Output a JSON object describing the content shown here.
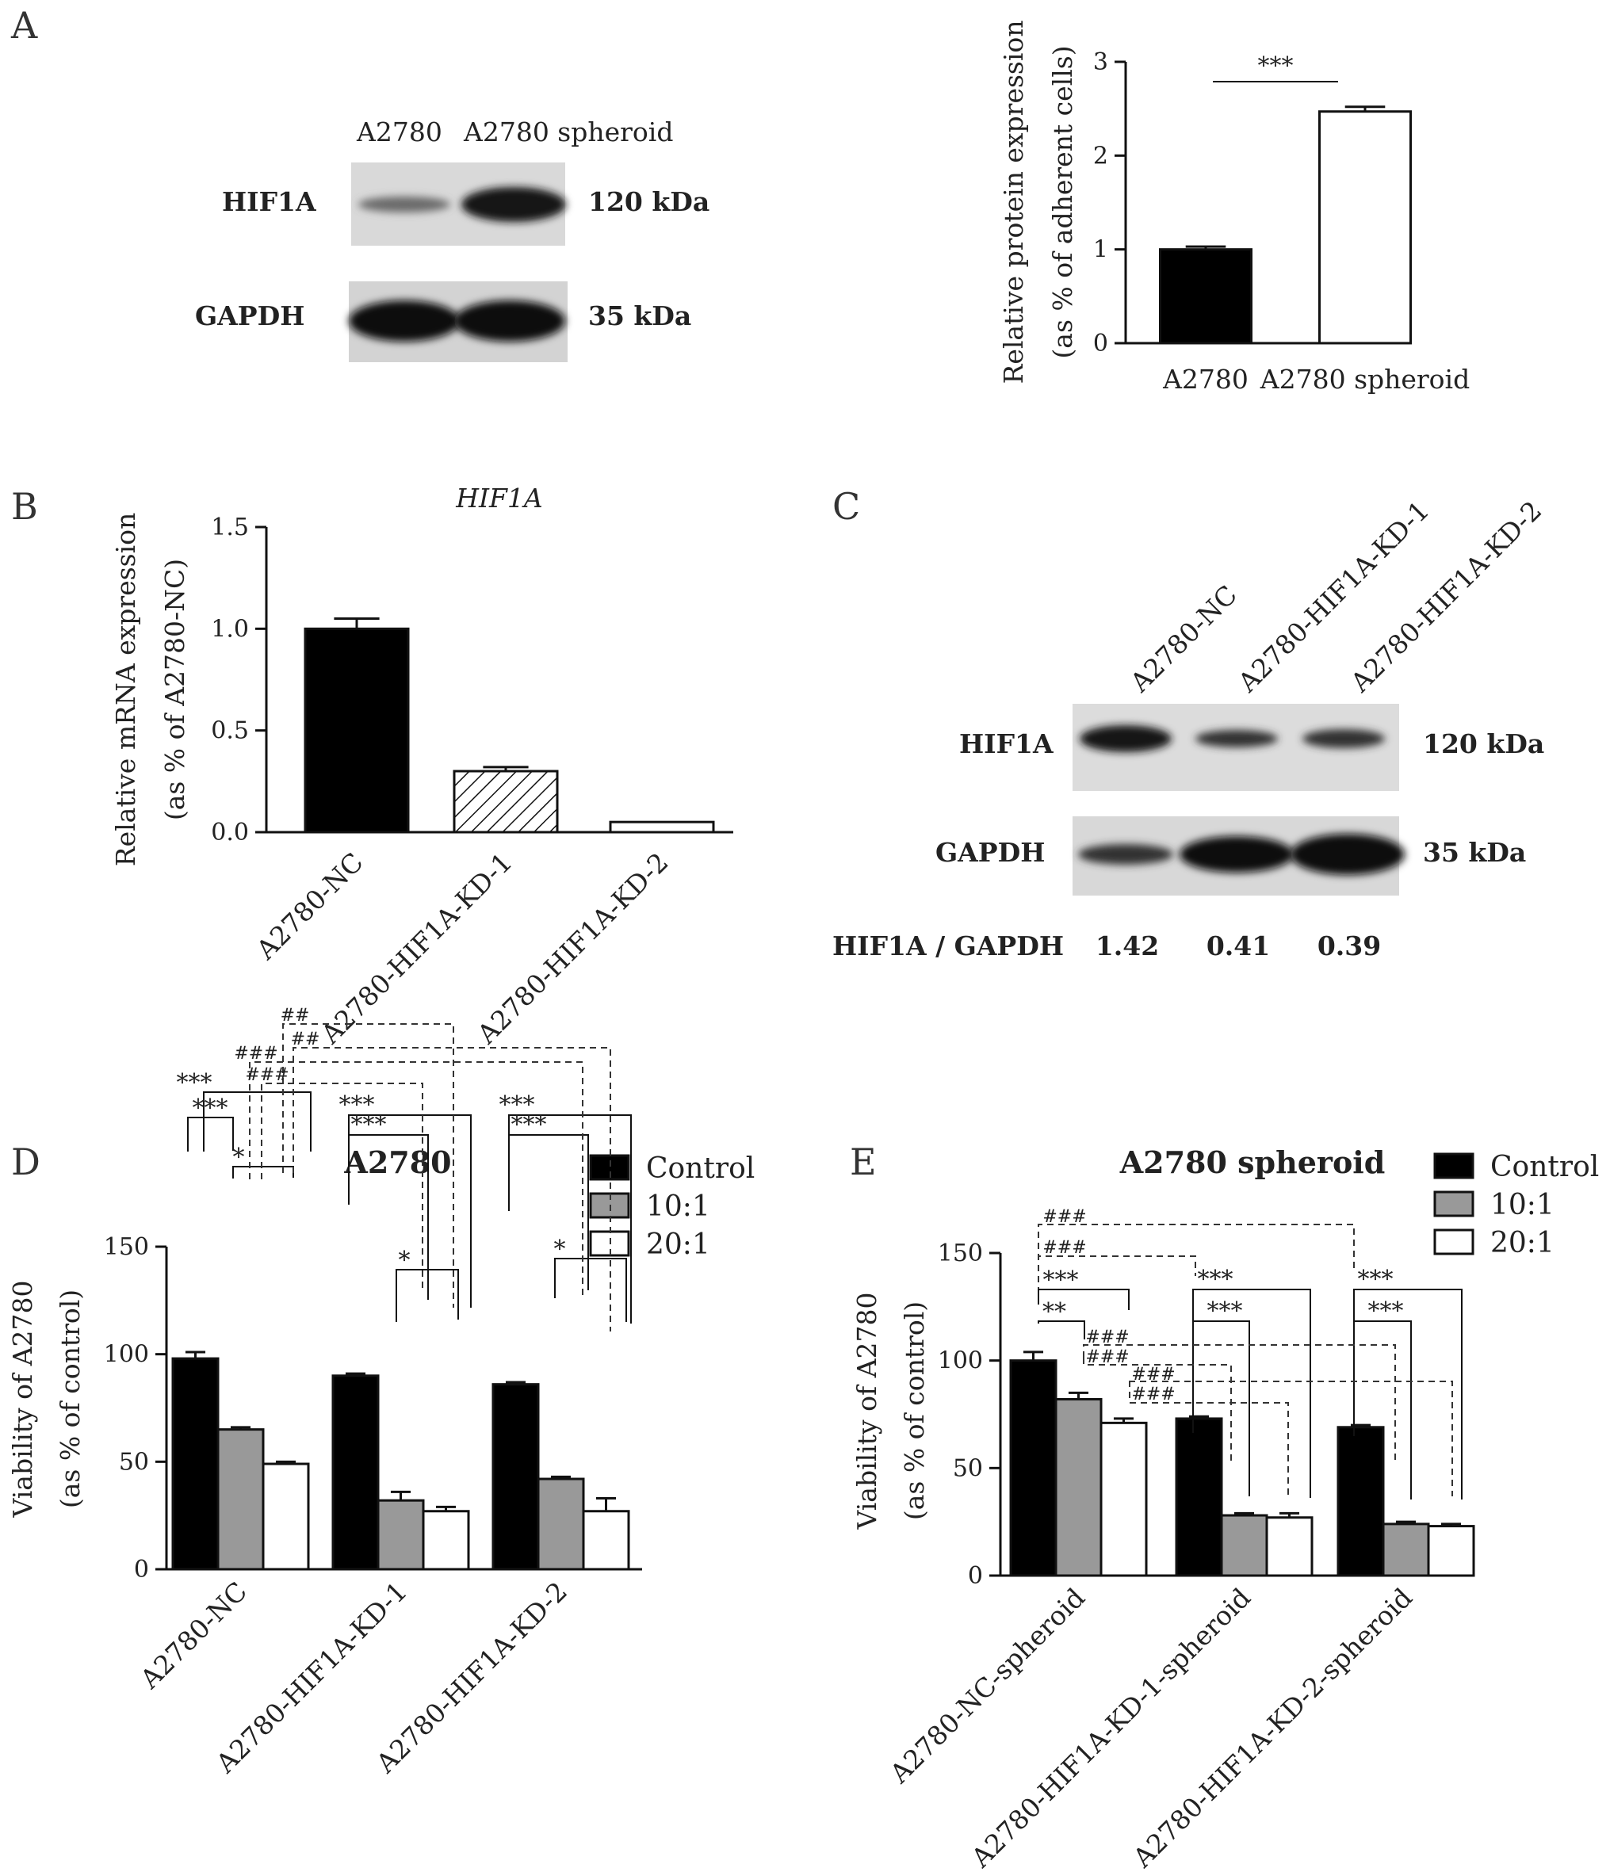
{
  "panels": {
    "A": "A",
    "B": "B",
    "C": "C",
    "D": "D",
    "E": "E"
  },
  "blot_a": {
    "lanes": [
      "A2780",
      "A2780 spheroid"
    ],
    "rows": [
      {
        "protein": "HIF1A",
        "size": "120 kDa"
      },
      {
        "protein": "GAPDH",
        "size": "35 kDa"
      }
    ]
  },
  "blot_c": {
    "lanes": [
      "A2780-NC",
      "A2780-HIF1A-KD-1",
      "A2780-HIF1A-KD-2"
    ],
    "rows": [
      {
        "protein": "HIF1A",
        "size": "120 kDa"
      },
      {
        "protein": "GAPDH",
        "size": "35 kDa"
      }
    ],
    "ratio_label": "HIF1A / GAPDH",
    "ratios": [
      "1.42",
      "0.41",
      "0.39"
    ]
  },
  "colors": {
    "black": "#000000",
    "gray": "#999999",
    "white": "#ffffff"
  },
  "chart_data": [
    {
      "id": "A",
      "type": "bar",
      "title": "",
      "ylabel": [
        "Relative protein expression",
        "(as % of adherent cells)"
      ],
      "categories": [
        "A2780",
        "A2780 spheroid"
      ],
      "values": [
        1.0,
        2.47
      ],
      "errors": [
        0.03,
        0.05
      ],
      "fills": [
        "black",
        "white"
      ],
      "ylim": [
        0,
        3
      ],
      "yticks": [
        "0",
        "1",
        "2",
        "3"
      ],
      "significance": [
        "***"
      ]
    },
    {
      "id": "B",
      "type": "bar",
      "title": "HIF1A",
      "ylabel": [
        "Relative mRNA expression",
        "(as % of A2780-NC)"
      ],
      "categories": [
        "A2780-NC",
        "A2780-HIF1A-KD-1",
        "A2780-HIF1A-KD-2"
      ],
      "values": [
        1.0,
        0.3,
        0.05
      ],
      "errors": [
        0.05,
        0.02,
        0.0
      ],
      "fills": [
        "black",
        "hatched",
        "white"
      ],
      "ylim": [
        0,
        1.5
      ],
      "yticks": [
        "0.0",
        "0.5",
        "1.0",
        "1.5"
      ]
    },
    {
      "id": "D",
      "type": "bar",
      "title": "A2780",
      "ylabel": [
        "Viability of A2780",
        "(as % of control)"
      ],
      "categories": [
        "A2780-NC",
        "A2780-HIF1A-KD-1",
        "A2780-HIF1A-KD-2"
      ],
      "series": [
        {
          "name": "Control",
          "values": [
            98,
            90,
            86
          ],
          "errors": [
            3,
            1,
            1
          ]
        },
        {
          "name": "10:1",
          "values": [
            65,
            32,
            42
          ],
          "errors": [
            1,
            4,
            1
          ]
        },
        {
          "name": "20:1",
          "values": [
            49,
            27,
            27
          ],
          "errors": [
            1,
            2,
            6
          ]
        }
      ],
      "ylim": [
        0,
        150
      ],
      "yticks": [
        "0",
        "50",
        "100",
        "150"
      ],
      "legend": "top-right",
      "significance": [
        "***",
        "***",
        "*",
        "***",
        "***",
        "*",
        "***",
        "***",
        "*",
        "##",
        "##",
        "###",
        "###"
      ]
    },
    {
      "id": "E",
      "type": "bar",
      "title": "A2780 spheroid",
      "ylabel": [
        "Viability of A2780",
        "(as % of control)"
      ],
      "categories": [
        "A2780-NC-spheroid",
        "A2780-HIF1A-KD-1-spheroid",
        "A2780-HIF1A-KD-2-spheroid"
      ],
      "series": [
        {
          "name": "Control",
          "values": [
            100,
            73,
            69
          ],
          "errors": [
            4,
            1,
            1
          ]
        },
        {
          "name": "10:1",
          "values": [
            82,
            28,
            24
          ],
          "errors": [
            3,
            1,
            1
          ]
        },
        {
          "name": "20:1",
          "values": [
            71,
            27,
            23
          ],
          "errors": [
            2,
            2,
            1
          ]
        }
      ],
      "ylim": [
        0,
        150
      ],
      "yticks": [
        "0",
        "50",
        "100",
        "150"
      ],
      "legend": "top-right",
      "significance": [
        "###",
        "###",
        "***",
        "**",
        "***",
        "***",
        "***",
        "***",
        "###",
        "###",
        "###",
        "###"
      ]
    }
  ]
}
